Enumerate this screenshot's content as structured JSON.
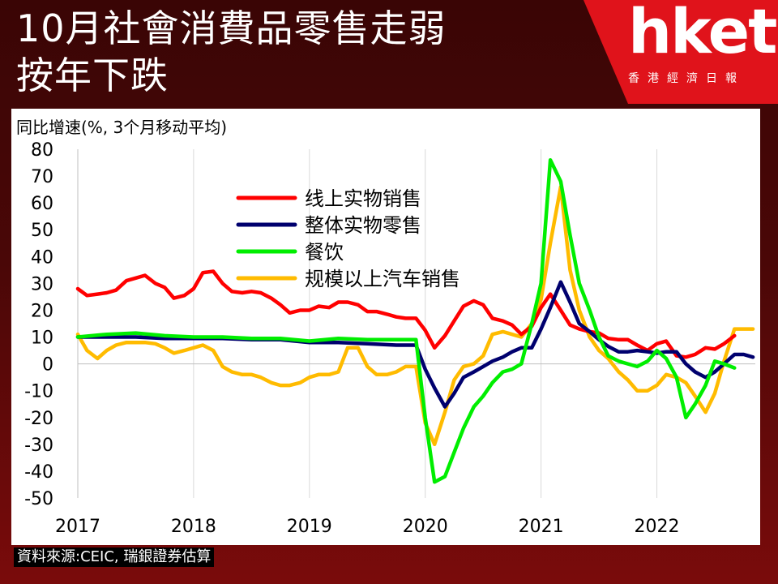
{
  "header": {
    "title_line1": "10月社會消費品零售走弱",
    "title_line2": "按年下跌"
  },
  "logo": {
    "wordmark": "hket",
    "subtitle": "香港經濟日報",
    "brand_color": "#e0131b"
  },
  "source_note": "資料來源:CEIC, 瑞銀證券估算",
  "chart_data": {
    "type": "line",
    "title": "同比增速(%, 3个月移动平均)",
    "xlabel": "",
    "ylabel": "",
    "ylim": [
      -50,
      80
    ],
    "yticks": [
      "80",
      "70",
      "60",
      "50",
      "40",
      "30",
      "20",
      "10",
      "0",
      "-10",
      "-20",
      "-30",
      "-40",
      "-50"
    ],
    "xticks": [
      "2017",
      "2018",
      "2019",
      "2020",
      "2021",
      "2022"
    ],
    "xlim": [
      2017.0,
      2022.85
    ],
    "grid": "vertical",
    "legend_placement": "upper-center",
    "series": [
      {
        "name": "线上实物销售",
        "color": "#ff0000",
        "x": [
          2017.0,
          2017.08,
          2017.17,
          2017.25,
          2017.33,
          2017.42,
          2017.5,
          2017.58,
          2017.67,
          2017.75,
          2017.83,
          2017.92,
          2018.0,
          2018.08,
          2018.17,
          2018.25,
          2018.33,
          2018.42,
          2018.5,
          2018.58,
          2018.67,
          2018.75,
          2018.83,
          2018.92,
          2019.0,
          2019.08,
          2019.17,
          2019.25,
          2019.33,
          2019.42,
          2019.5,
          2019.58,
          2019.67,
          2019.75,
          2019.83,
          2019.92,
          2020.0,
          2020.08,
          2020.17,
          2020.25,
          2020.33,
          2020.42,
          2020.5,
          2020.58,
          2020.67,
          2020.75,
          2020.83,
          2020.92,
          2021.0,
          2021.08,
          2021.17,
          2021.25,
          2021.33,
          2021.42,
          2021.5,
          2021.58,
          2021.67,
          2021.75,
          2021.83,
          2021.92,
          2022.0,
          2022.08,
          2022.17,
          2022.25,
          2022.33,
          2022.42,
          2022.5,
          2022.58,
          2022.67,
          2022.75
        ],
        "y": [
          28,
          25.5,
          26,
          26.5,
          27.5,
          31,
          32,
          33,
          30,
          28.5,
          24.5,
          25.5,
          28,
          34,
          34.5,
          30,
          27,
          26.5,
          27,
          26.5,
          24.5,
          22,
          19,
          20,
          20,
          21.5,
          21,
          23,
          23,
          22,
          19.5,
          19.5,
          18.5,
          17.5,
          17,
          17,
          12.5,
          6,
          10.5,
          16,
          21.5,
          23.5,
          22,
          17,
          16,
          14.5,
          11,
          14,
          21,
          26,
          20,
          14.5,
          13,
          12,
          11.5,
          9.5,
          9,
          9,
          7,
          5,
          7.5,
          8.5,
          3,
          2.5,
          3.5,
          6,
          5.5,
          7.5,
          10.5,
          null
        ],
        "y_final_label_omitted": true
      },
      {
        "name": "整体实物零售",
        "color": "#00006e",
        "x": [
          2017.0,
          2017.25,
          2017.5,
          2017.75,
          2018.0,
          2018.25,
          2018.5,
          2018.75,
          2019.0,
          2019.25,
          2019.5,
          2019.75,
          2019.92,
          2020.0,
          2020.08,
          2020.17,
          2020.25,
          2020.33,
          2020.42,
          2020.5,
          2020.58,
          2020.67,
          2020.75,
          2020.83,
          2020.92,
          2021.0,
          2021.08,
          2021.17,
          2021.25,
          2021.33,
          2021.42,
          2021.5,
          2021.58,
          2021.67,
          2021.75,
          2021.83,
          2021.92,
          2022.0,
          2022.08,
          2022.17,
          2022.25,
          2022.33,
          2022.42,
          2022.5,
          2022.58,
          2022.67,
          2022.75,
          2022.83
        ],
        "y": [
          10,
          10,
          10,
          9.5,
          9.5,
          9.5,
          9,
          9,
          8,
          8,
          7.5,
          7,
          7,
          -2,
          -9,
          -16,
          -11,
          -5,
          -3,
          -1,
          1,
          2.5,
          4.5,
          6,
          6,
          13,
          21,
          30.5,
          23,
          15,
          12,
          9,
          6.5,
          4.5,
          4.5,
          5,
          4.5,
          4,
          4.5,
          4.5,
          0,
          -3,
          -5,
          -3,
          0,
          3.5,
          3.5,
          2.5
        ]
      },
      {
        "name": "餐饮",
        "color": "#00ee00",
        "x": [
          2017.0,
          2017.25,
          2017.5,
          2017.75,
          2018.0,
          2018.25,
          2018.5,
          2018.75,
          2019.0,
          2019.25,
          2019.5,
          2019.75,
          2019.92,
          2020.0,
          2020.08,
          2020.17,
          2020.25,
          2020.33,
          2020.42,
          2020.5,
          2020.58,
          2020.67,
          2020.75,
          2020.83,
          2020.92,
          2021.0,
          2021.08,
          2021.17,
          2021.25,
          2021.33,
          2021.42,
          2021.5,
          2021.58,
          2021.67,
          2021.75,
          2021.83,
          2021.92,
          2022.0,
          2022.08,
          2022.17,
          2022.25,
          2022.33,
          2022.42,
          2022.5,
          2022.58,
          2022.67,
          2022.75,
          2022.83
        ],
        "y": [
          10,
          11,
          11.5,
          10.5,
          10,
          10,
          9.5,
          9.5,
          8.5,
          9.5,
          9,
          9,
          9,
          -20,
          -44,
          -42,
          -33,
          -24,
          -16,
          -12,
          -7,
          -3,
          -2,
          0,
          15,
          30,
          76,
          68,
          48,
          30,
          20,
          10,
          3,
          1,
          0,
          -1,
          1,
          5,
          2,
          -5,
          -20,
          -15,
          -8,
          1,
          0,
          -1.5,
          null,
          null
        ]
      },
      {
        "name": "规模以上汽车销售",
        "color": "#ffbb00",
        "x": [
          2017.0,
          2017.08,
          2017.17,
          2017.25,
          2017.33,
          2017.42,
          2017.5,
          2017.58,
          2017.67,
          2017.75,
          2017.83,
          2017.92,
          2018.0,
          2018.08,
          2018.17,
          2018.25,
          2018.33,
          2018.42,
          2018.5,
          2018.58,
          2018.67,
          2018.75,
          2018.83,
          2018.92,
          2019.0,
          2019.08,
          2019.17,
          2019.25,
          2019.33,
          2019.42,
          2019.5,
          2019.58,
          2019.67,
          2019.75,
          2019.83,
          2019.92,
          2020.0,
          2020.08,
          2020.17,
          2020.25,
          2020.33,
          2020.42,
          2020.5,
          2020.58,
          2020.67,
          2020.75,
          2020.83,
          2020.92,
          2021.0,
          2021.08,
          2021.17,
          2021.25,
          2021.33,
          2021.42,
          2021.5,
          2021.58,
          2021.67,
          2021.75,
          2021.83,
          2021.92,
          2022.0,
          2022.08,
          2022.17,
          2022.25,
          2022.33,
          2022.42,
          2022.5,
          2022.58,
          2022.67,
          2022.75,
          2022.83
        ],
        "y": [
          11,
          5,
          2,
          5,
          7,
          8,
          8,
          8,
          7.5,
          6,
          4,
          5,
          6,
          7,
          5,
          -1,
          -3,
          -4,
          -4,
          -5,
          -7,
          -8,
          -8,
          -7,
          -5,
          -4,
          -4,
          -3,
          6,
          6,
          -1,
          -4,
          -4,
          -3,
          -1,
          -1,
          -22,
          -30,
          -18,
          -6,
          -1,
          0,
          3,
          11,
          12,
          11,
          10,
          15,
          24,
          45,
          66,
          35,
          20,
          10,
          5,
          2,
          -3,
          -6,
          -10,
          -10,
          -8,
          -4,
          -5,
          -7,
          -12,
          -18,
          -11,
          1,
          13,
          13,
          13
        ]
      }
    ]
  }
}
